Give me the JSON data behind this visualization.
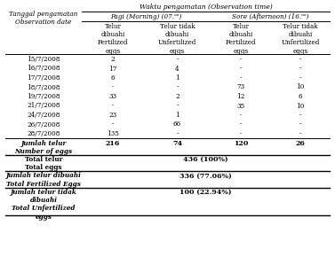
{
  "title_top": "Waktu pengamatan (Observation time)",
  "col_group1": "Pagi (Morning) (07.ᵒᵒ)",
  "col_group2": "Sore (Afternoon) (16.ᵒᵒ)",
  "row_label_header": "Tanggal pengamatan\nObservation date",
  "subheaders": [
    "Telur\ndibuahi\nFertilized\neggs",
    "Telur tidak\ndibuahi\nUnfertilized\neggs",
    "Telur\ndibuahi\nFertilized\neggs",
    "Telur tidak\ndibuahi\nUnfertilized\neggs"
  ],
  "data_rows": [
    [
      "15/7/2008",
      "2",
      "-",
      "-",
      "-"
    ],
    [
      "16/7/2008",
      "17",
      "4",
      "-",
      "-"
    ],
    [
      "17/7/2008",
      "6",
      "1",
      "-",
      "-"
    ],
    [
      "18/7/2008",
      "-",
      "-",
      "73",
      "10"
    ],
    [
      "19/7/2008",
      "33",
      "2",
      "12",
      "6"
    ],
    [
      "21/7/2008",
      "-",
      "-",
      "35",
      "10"
    ],
    [
      "24/7/2008",
      "23",
      "1",
      "-",
      "-"
    ],
    [
      "26/7/2008",
      "-",
      "66",
      "-",
      "-"
    ],
    [
      "28/7/2008",
      "135",
      "-",
      "-",
      "-"
    ]
  ],
  "summary_row": [
    "Jumlah telur\nNumber of eggs",
    "216",
    "74",
    "120",
    "26"
  ],
  "total_label": "Total telur\nTotal eggs",
  "total_value": "436 (100%)",
  "fertilized_label": "Jumlah telur dibuahi\nTotal Fertilized Eggs",
  "fertilized_value": "336 (77.06%)",
  "unfertilized_label": "Jumlah telur tidak\ndibuahi\nTotal Unfertilized\neggs",
  "unfertilized_value": "100 (22.94%)",
  "bg_color": "#ffffff",
  "text_color": "#000000",
  "font_size": 5.2
}
